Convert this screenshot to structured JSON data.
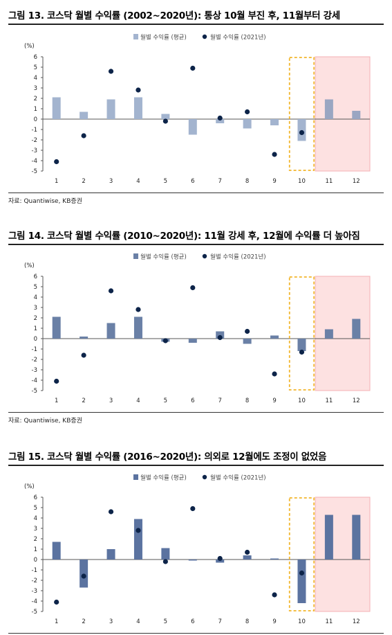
{
  "figures": [
    {
      "title": "그림 13. 코스닥 월별 수익률 (2002~2020년): 통상 10월 부진 후, 11월부터 강세",
      "source": "자료: Quantiwise, KB증권"
    },
    {
      "title": "그림 14. 코스닥 월별 수익률 (2010~2020년): 11월 강세 후, 12월에 수익률 더 높아짐",
      "source": "자료: Quantiwise, KB증권"
    },
    {
      "title": "그림 15. 코스닥 월별 수익률 (2016~2020년): 의외로 12월에도 조정이 없었음",
      "source": ""
    }
  ],
  "chart_data": [
    {
      "type": "bar",
      "categories": [
        "1",
        "2",
        "3",
        "4",
        "5",
        "6",
        "7",
        "8",
        "9",
        "10",
        "11",
        "12"
      ],
      "ylabel": "(%)",
      "ylim": [
        -5,
        6
      ],
      "yticks": [
        6,
        5,
        4,
        3,
        2,
        1,
        0,
        -1,
        -2,
        -3,
        -4,
        -5
      ],
      "legend": {
        "placement": "top",
        "bar_label": "월별 수익률 (평균)",
        "dot_label": "월별 수익률 (2021년)"
      },
      "series": [
        {
          "name": "월별 수익률 (평균)",
          "kind": "bar",
          "values": [
            2.1,
            0.7,
            1.9,
            2.1,
            0.5,
            -1.5,
            -0.4,
            -0.9,
            -0.6,
            -2.1,
            1.9,
            0.8
          ]
        },
        {
          "name": "월별 수익률 (2021년)",
          "kind": "dot",
          "values": [
            -4.1,
            -1.6,
            4.6,
            2.8,
            -0.2,
            4.9,
            0.1,
            0.7,
            -3.4,
            -1.3,
            null,
            null
          ]
        }
      ],
      "colors": {
        "bar": "#a3b4cf",
        "bar_highlight": "#9aa6c2",
        "dot": "#0d2449",
        "highlight_box": "#f2b52b",
        "shade": "#fde1e1",
        "shade_border": "#f4b0b4"
      },
      "highlight_month": "10",
      "shaded_months": [
        "11",
        "12"
      ]
    },
    {
      "type": "bar",
      "categories": [
        "1",
        "2",
        "3",
        "4",
        "5",
        "6",
        "7",
        "8",
        "9",
        "10",
        "11",
        "12"
      ],
      "ylabel": "(%)",
      "ylim": [
        -5,
        6
      ],
      "yticks": [
        6,
        5,
        4,
        3,
        2,
        1,
        0,
        -1,
        -2,
        -3,
        -4,
        -5
      ],
      "legend": {
        "placement": "top",
        "bar_label": "월별 수익률 (평균)",
        "dot_label": "월별 수익률 (2021년)"
      },
      "series": [
        {
          "name": "월별 수익률 (평균)",
          "kind": "bar",
          "values": [
            2.1,
            0.2,
            1.5,
            2.1,
            -0.3,
            -0.4,
            0.7,
            -0.5,
            0.3,
            -1.2,
            0.9,
            1.9
          ]
        },
        {
          "name": "월별 수익률 (2021년)",
          "kind": "dot",
          "values": [
            -4.1,
            -1.6,
            4.6,
            2.8,
            -0.2,
            4.9,
            0.1,
            0.7,
            -3.4,
            -1.3,
            null,
            null
          ]
        }
      ],
      "colors": {
        "bar": "#6a80a6",
        "bar_highlight": "#6a80a6",
        "dot": "#0d2449",
        "highlight_box": "#f2b52b",
        "shade": "#fde1e1",
        "shade_border": "#f4b0b4"
      },
      "highlight_month": "10",
      "shaded_months": [
        "11",
        "12"
      ]
    },
    {
      "type": "bar",
      "categories": [
        "1",
        "2",
        "3",
        "4",
        "5",
        "6",
        "7",
        "8",
        "9",
        "10",
        "11",
        "12"
      ],
      "ylabel": "(%)",
      "ylim": [
        -5,
        6
      ],
      "yticks": [
        6,
        5,
        4,
        3,
        2,
        1,
        0,
        -1,
        -2,
        -3,
        -4,
        -5
      ],
      "legend": {
        "placement": "top",
        "bar_label": "월별 수익률 (평균)",
        "dot_label": "월별 수익률 (2021년)"
      },
      "series": [
        {
          "name": "월별 수익률 (평균)",
          "kind": "bar",
          "values": [
            1.7,
            -2.7,
            1.0,
            3.9,
            1.1,
            -0.1,
            -0.3,
            0.4,
            0.1,
            -4.2,
            4.3,
            4.3
          ]
        },
        {
          "name": "월별 수익률 (2021년)",
          "kind": "dot",
          "values": [
            -4.1,
            -1.6,
            4.6,
            2.8,
            -0.2,
            4.9,
            0.1,
            0.7,
            -3.4,
            -1.3,
            null,
            null
          ]
        }
      ],
      "colors": {
        "bar": "#5b73a0",
        "bar_highlight": "#5b73a0",
        "dot": "#0d2449",
        "highlight_box": "#f2b52b",
        "shade": "#fde1e1",
        "shade_border": "#f4b0b4"
      },
      "highlight_month": "10",
      "shaded_months": [
        "11",
        "12"
      ]
    }
  ]
}
